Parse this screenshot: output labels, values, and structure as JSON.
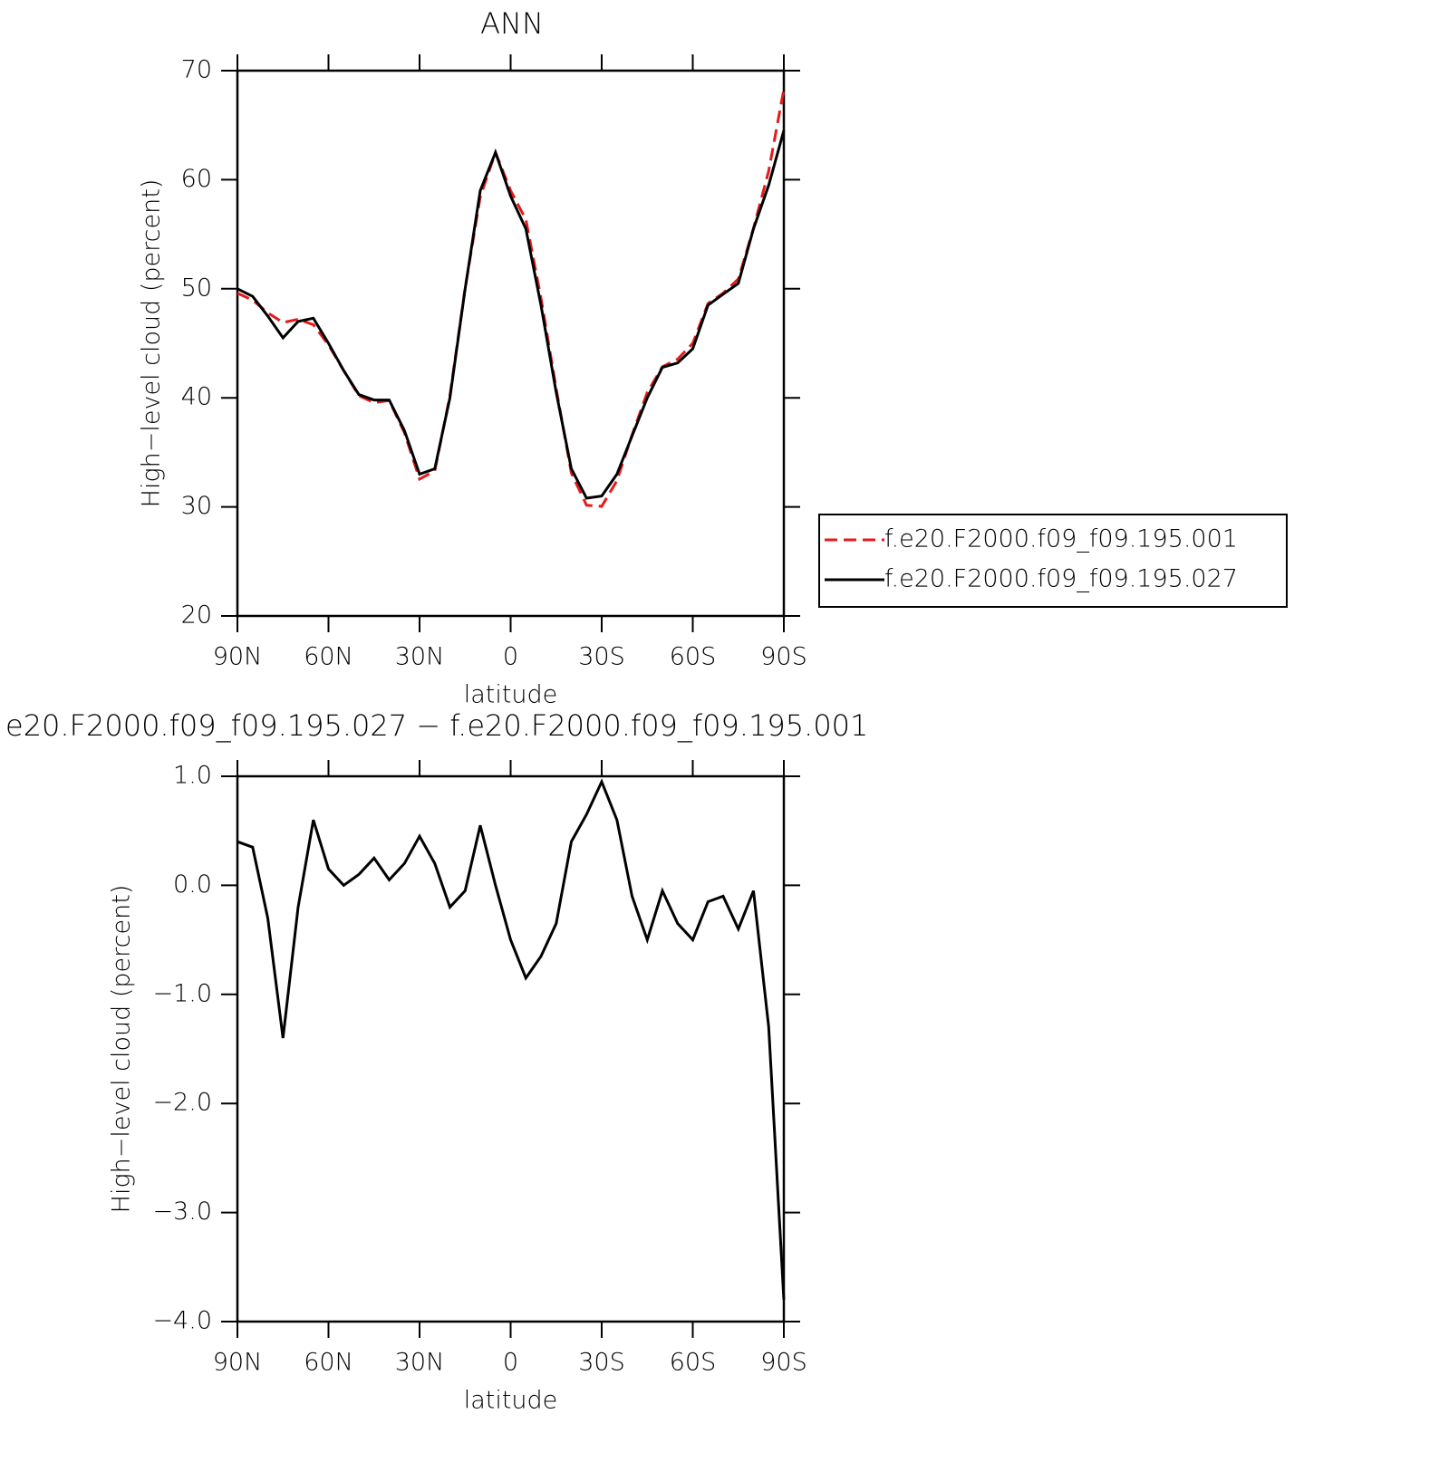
{
  "chart_data": [
    {
      "type": "line",
      "title": "ANN",
      "xlabel": "latitude",
      "ylabel": "High−level cloud (percent)",
      "x": [
        90,
        85,
        80,
        75,
        70,
        65,
        60,
        55,
        50,
        45,
        40,
        35,
        30,
        25,
        20,
        15,
        10,
        5,
        0,
        -5,
        -10,
        -15,
        -20,
        -25,
        -30,
        -35,
        -40,
        -45,
        -50,
        -55,
        -60,
        -65,
        -70,
        -75,
        -80,
        -85,
        -90
      ],
      "series": [
        {
          "name": "f.e20.F2000.f09_f09.195.001",
          "color": "#e41a1c",
          "dash": true,
          "values": [
            49.6,
            48.95,
            47.8,
            46.9,
            47.2,
            46.7,
            44.85,
            42.5,
            40.2,
            39.55,
            39.75,
            36.8,
            32.55,
            33.3,
            40.2,
            50.05,
            58.45,
            62.5,
            59.0,
            56.35,
            49.15,
            40.85,
            33.1,
            30.15,
            30.05,
            32.4,
            36.6,
            40.5,
            42.85,
            43.55,
            45.0,
            48.65,
            49.6,
            50.9,
            55.55,
            60.8,
            68.3
          ]
        },
        {
          "name": "f.e20.F2000.f09_f09.195.027",
          "color": "#000000",
          "dash": false,
          "values": [
            50.0,
            49.3,
            47.5,
            45.5,
            47.0,
            47.3,
            45.0,
            42.5,
            40.3,
            39.8,
            39.8,
            37.0,
            33.0,
            33.5,
            40.0,
            50.0,
            59.0,
            62.5,
            58.5,
            55.5,
            48.5,
            40.5,
            33.5,
            30.8,
            31.0,
            33.0,
            36.5,
            40.0,
            42.8,
            43.2,
            44.5,
            48.5,
            49.5,
            50.5,
            55.5,
            59.5,
            64.5
          ]
        }
      ],
      "xlim": [
        90,
        -90
      ],
      "xticks": [
        {
          "value": 90,
          "label": "90N"
        },
        {
          "value": 60,
          "label": "60N"
        },
        {
          "value": 30,
          "label": "30N"
        },
        0,
        {
          "value": -30,
          "label": "30S"
        },
        {
          "value": -60,
          "label": "60S"
        },
        {
          "value": -90,
          "label": "90S"
        }
      ],
      "ylim": [
        20,
        70
      ],
      "yticks": [
        20,
        30,
        40,
        50,
        60,
        70
      ]
    },
    {
      "type": "line",
      "title": "e20.F2000.f09_f09.195.027 − f.e20.F2000.f09_f09.195.001",
      "xlabel": "latitude",
      "ylabel": "High−level cloud (percent)",
      "x": [
        90,
        85,
        80,
        75,
        70,
        65,
        60,
        55,
        50,
        45,
        40,
        35,
        30,
        25,
        20,
        15,
        10,
        5,
        0,
        -5,
        -10,
        -15,
        -20,
        -25,
        -30,
        -35,
        -40,
        -45,
        -50,
        -55,
        -60,
        -65,
        -70,
        -75,
        -80,
        -85,
        -90
      ],
      "values": [
        0.4,
        0.35,
        -0.3,
        -1.4,
        -0.2,
        0.6,
        0.15,
        0.0,
        0.1,
        0.25,
        0.05,
        0.2,
        0.45,
        0.2,
        -0.2,
        -0.05,
        0.55,
        0.0,
        -0.5,
        -0.85,
        -0.65,
        -0.35,
        0.4,
        0.65,
        0.95,
        0.6,
        -0.1,
        -0.5,
        -0.05,
        -0.35,
        -0.5,
        -0.15,
        -0.1,
        -0.4,
        -0.05,
        -1.3,
        -3.8
      ],
      "color": "#000000",
      "xlim": [
        90,
        -90
      ],
      "xticks": [
        {
          "value": 90,
          "label": "90N"
        },
        {
          "value": 60,
          "label": "60N"
        },
        {
          "value": 30,
          "label": "30N"
        },
        0,
        {
          "value": -30,
          "label": "30S"
        },
        {
          "value": -60,
          "label": "60S"
        },
        {
          "value": -90,
          "label": "90S"
        }
      ],
      "ylim": [
        -4,
        1
      ],
      "yticks": [
        {
          "value": -4,
          "label": "−4.0"
        },
        {
          "value": -3,
          "label": "−3.0"
        },
        {
          "value": -2,
          "label": "−2.0"
        },
        {
          "value": -1,
          "label": "−1.0"
        },
        {
          "value": 0,
          "label": "0.0"
        },
        {
          "value": 1,
          "label": "1.0"
        }
      ]
    }
  ]
}
